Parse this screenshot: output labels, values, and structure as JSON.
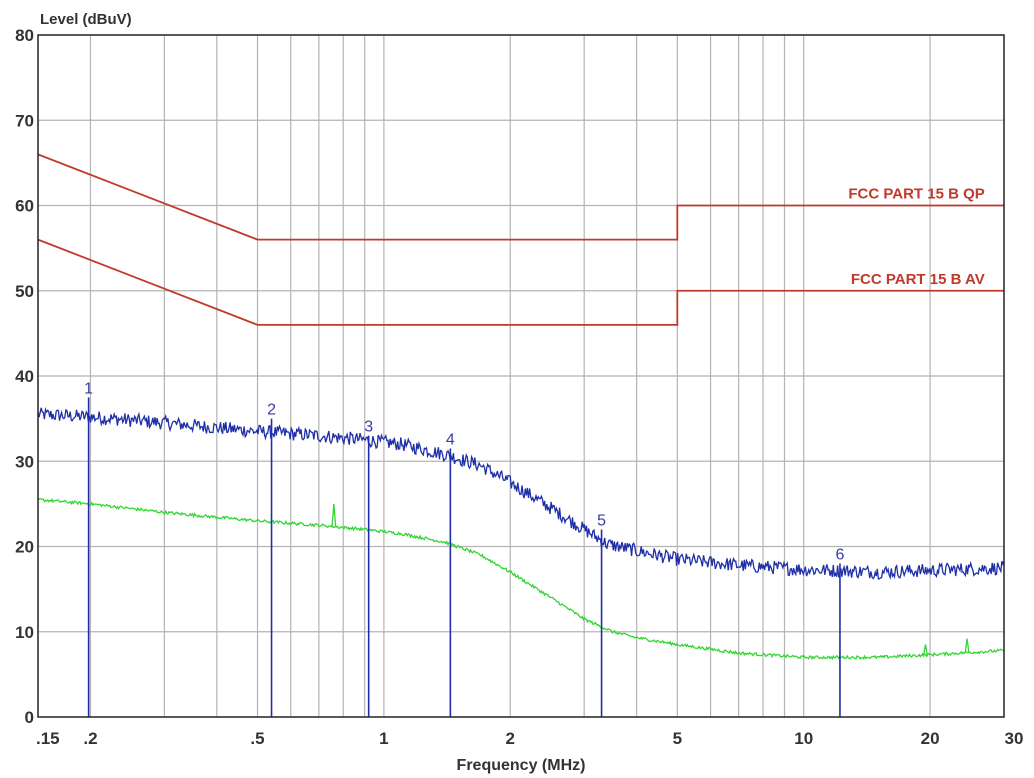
{
  "chart_data": {
    "type": "line",
    "title": "",
    "ylabel": "Level (dBuV)",
    "xlabel": "Frequency (MHz)",
    "x_scale": "log",
    "xlim": [
      0.15,
      30
    ],
    "ylim": [
      0,
      80
    ],
    "grid": true,
    "colors": {
      "limit": "#c0392b",
      "peak": "#1f2fa8",
      "average": "#33d633",
      "grid": "#b4b4b4",
      "frame": "#222222"
    },
    "x_ticks": [
      {
        "value": 0.15,
        "label": ".15"
      },
      {
        "value": 0.2,
        "label": ".2"
      },
      {
        "value": 0.5,
        "label": ".5"
      },
      {
        "value": 1,
        "label": "1"
      },
      {
        "value": 2,
        "label": "2"
      },
      {
        "value": 5,
        "label": "5"
      },
      {
        "value": 10,
        "label": "10"
      },
      {
        "value": 20,
        "label": "20"
      },
      {
        "value": 30,
        "label": "30"
      }
    ],
    "x_minor_grid": [
      0.3,
      0.4,
      0.6,
      0.7,
      0.8,
      0.9,
      3,
      4,
      6,
      7,
      8,
      9
    ],
    "y_ticks": [
      0,
      10,
      20,
      30,
      40,
      50,
      60,
      70,
      80
    ],
    "series": [
      {
        "name": "FCC PART 15 B QP",
        "kind": "limit",
        "x": [
          0.15,
          0.5,
          0.5,
          5,
          5,
          30
        ],
        "y": [
          66,
          56,
          56,
          56,
          60,
          60
        ],
        "label_x": 27
      },
      {
        "name": "FCC PART 15 B AV",
        "kind": "limit",
        "x": [
          0.15,
          0.5,
          0.5,
          5,
          5,
          30
        ],
        "y": [
          56,
          46,
          46,
          46,
          50,
          50
        ],
        "label_x": 27
      },
      {
        "kind": "peak",
        "x": [
          0.15,
          0.2,
          0.3,
          0.5,
          0.7,
          0.9,
          1.1,
          1.4,
          1.7,
          2.0,
          2.5,
          3.0,
          3.4,
          4.0,
          5.0,
          7.0,
          10,
          15,
          20,
          30
        ],
        "y": [
          35.5,
          35.2,
          34.5,
          33.5,
          33.0,
          32.5,
          32.0,
          30.8,
          29.5,
          27.5,
          24.5,
          22.0,
          20.3,
          19.5,
          18.5,
          17.8,
          17.3,
          17.0,
          17.2,
          17.5
        ]
      },
      {
        "kind": "average",
        "x": [
          0.15,
          0.2,
          0.3,
          0.5,
          0.7,
          0.9,
          1.1,
          1.4,
          1.7,
          2.0,
          2.5,
          3.0,
          3.5,
          4.0,
          5.0,
          7.0,
          10,
          15,
          20,
          30
        ],
        "y": [
          25.5,
          25.0,
          24.0,
          23.0,
          22.5,
          22.0,
          21.5,
          20.5,
          19.0,
          17.0,
          14.0,
          11.5,
          10.0,
          9.3,
          8.5,
          7.5,
          7.0,
          7.0,
          7.3,
          7.8
        ]
      }
    ],
    "markers": [
      {
        "label": "1",
        "x": 0.198,
        "y": 37.5
      },
      {
        "label": "2",
        "x": 0.54,
        "y": 35.0
      },
      {
        "label": "3",
        "x": 0.92,
        "y": 33.0
      },
      {
        "label": "4",
        "x": 1.44,
        "y": 31.5
      },
      {
        "label": "5",
        "x": 3.3,
        "y": 22.0
      },
      {
        "label": "6",
        "x": 12.2,
        "y": 18.0
      }
    ]
  }
}
